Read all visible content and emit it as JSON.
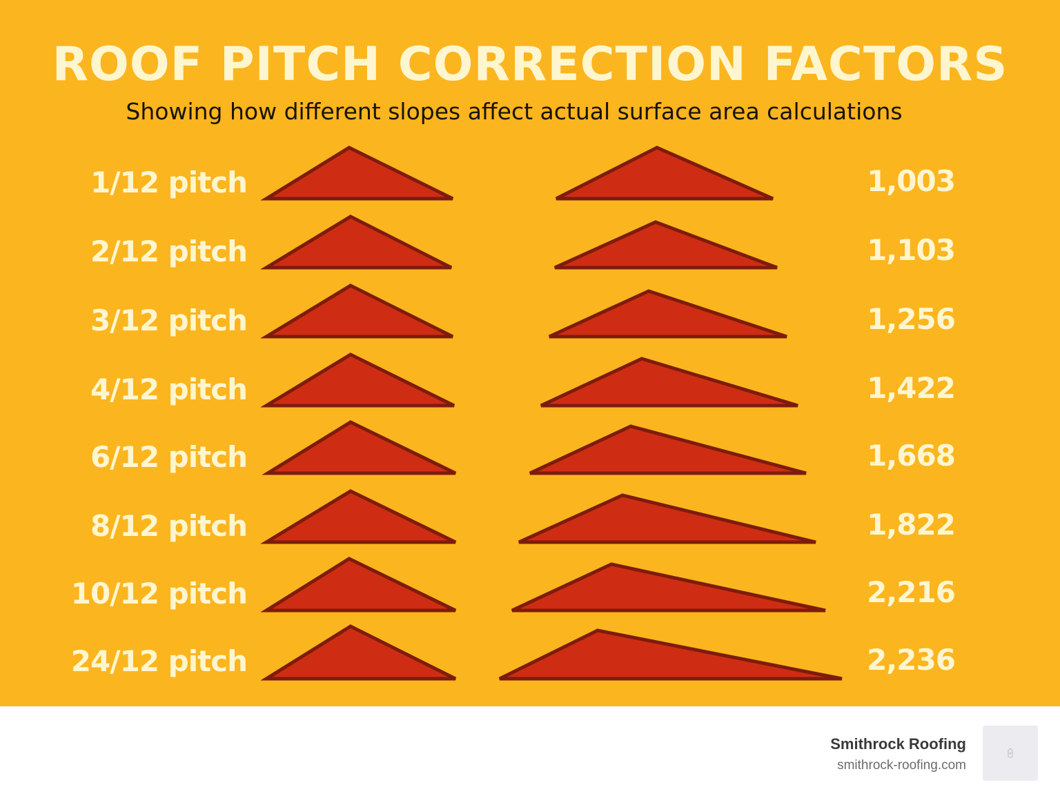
{
  "poster": {
    "title": "ROOF PITCH CORRECTION FACTORS",
    "subtitle": "Showing how different slopes affect actual surface area calculations",
    "background_color": "#fbb51f",
    "roof_fill_color": "#cf2d13",
    "roof_outline_color": "#7d1c0c",
    "text_color": "#fff6cf"
  },
  "rows": [
    {
      "label": "1/12 pitch",
      "value": "1,003"
    },
    {
      "label": "2/12 pitch",
      "value": "1,103"
    },
    {
      "label": "3/12 pitch",
      "value": "1,256"
    },
    {
      "label": "4/12 pitch",
      "value": "1,422"
    },
    {
      "label": "6/12 pitch",
      "value": "1,668"
    },
    {
      "label": "8/12 pitch",
      "value": "1,822"
    },
    {
      "label": "10/12 pitch",
      "value": "2,216"
    },
    {
      "label": "24/12 pitch",
      "value": "2,236"
    }
  ],
  "footer": {
    "brand_name": "Smithrock Roofing",
    "brand_url": "smithrock-roofing.com",
    "logo_icon": "roofing-logo-icon"
  }
}
